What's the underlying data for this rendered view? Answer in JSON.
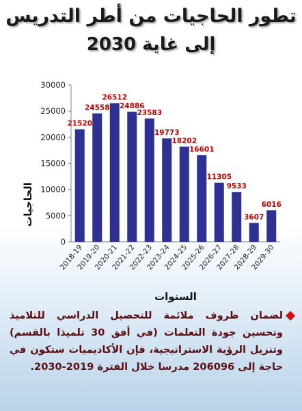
{
  "title_line1": "تطور الحاجيات من أطر التدريس",
  "title_line2": "إلى غاية 2030",
  "chart_data": {
    "type": "bar",
    "categories": [
      "2018-19",
      "2019-20",
      "2020-21",
      "2021-22",
      "2022-23",
      "2023-24",
      "2024-25",
      "2025-26",
      "2026-27",
      "2027-28",
      "2028-29",
      "2029-30"
    ],
    "values": [
      21520,
      24558,
      26512,
      24886,
      23583,
      19773,
      18202,
      16601,
      11305,
      9533,
      3607,
      6016
    ],
    "ylim": [
      0,
      30000
    ],
    "yticks": [
      0,
      5000,
      10000,
      15000,
      20000,
      25000,
      30000
    ],
    "xlabel": "السنوات",
    "ylabel": "الحاجيات",
    "grid": false,
    "colors": {
      "bar": "#2e3192",
      "label": "#c00000",
      "axis": "#7f7f7f"
    }
  },
  "description": "لضمان ظروف ملائمة للتحصيل الدراسي للتلاميذ وتحسين جودة التعلمات (في أفق 30 تلميذا بالقسم) وتنزيل الرؤية الاستراتيجية، فإن الأكاديميات ستكون في حاجة إلى 206096 مدرسا خلال الفترة 2019-2030."
}
